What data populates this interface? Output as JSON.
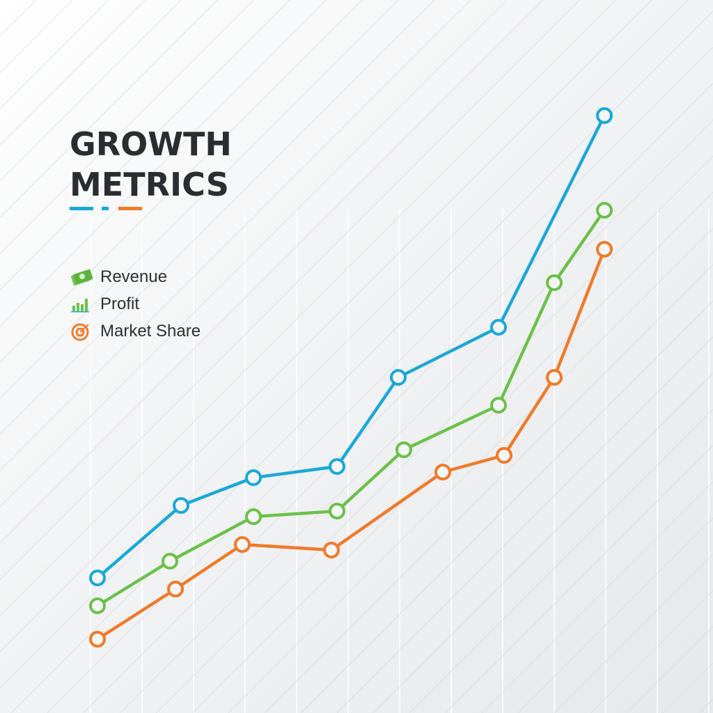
{
  "title": {
    "line1": "GROWTH",
    "line2": "METRICS"
  },
  "colors": {
    "blue": "#1aa8d6",
    "green": "#6cc04a",
    "orange": "#ef7a2a",
    "title": "#2b2d30"
  },
  "legend": [
    {
      "label": "Revenue",
      "icon": "money-bill-icon"
    },
    {
      "label": "Profit",
      "icon": "bar-chart-icon"
    },
    {
      "label": "Market Share",
      "icon": "target-icon"
    }
  ],
  "chart_data": {
    "type": "line",
    "title": "GROWTH METRICS",
    "xlabel": "",
    "ylabel": "",
    "xlim": [
      0,
      100
    ],
    "ylim": [
      0,
      100
    ],
    "grid": true,
    "legend_placement": "top-left",
    "series": [
      {
        "name": "Revenue",
        "color": "#1aa8d6",
        "x": [
          5,
          20,
          33,
          48,
          59,
          77,
          96
        ],
        "y": [
          15,
          28,
          33,
          35,
          51,
          60,
          98
        ]
      },
      {
        "name": "Profit",
        "color": "#6cc04a",
        "x": [
          5,
          18,
          33,
          48,
          60,
          77,
          87,
          96
        ],
        "y": [
          10,
          18,
          26,
          27,
          38,
          46,
          68,
          81
        ]
      },
      {
        "name": "Market Share",
        "color": "#ef7a2a",
        "x": [
          5,
          19,
          31,
          47,
          67,
          78,
          87,
          96
        ],
        "y": [
          4,
          13,
          21,
          20,
          34,
          37,
          51,
          74
        ]
      }
    ]
  }
}
